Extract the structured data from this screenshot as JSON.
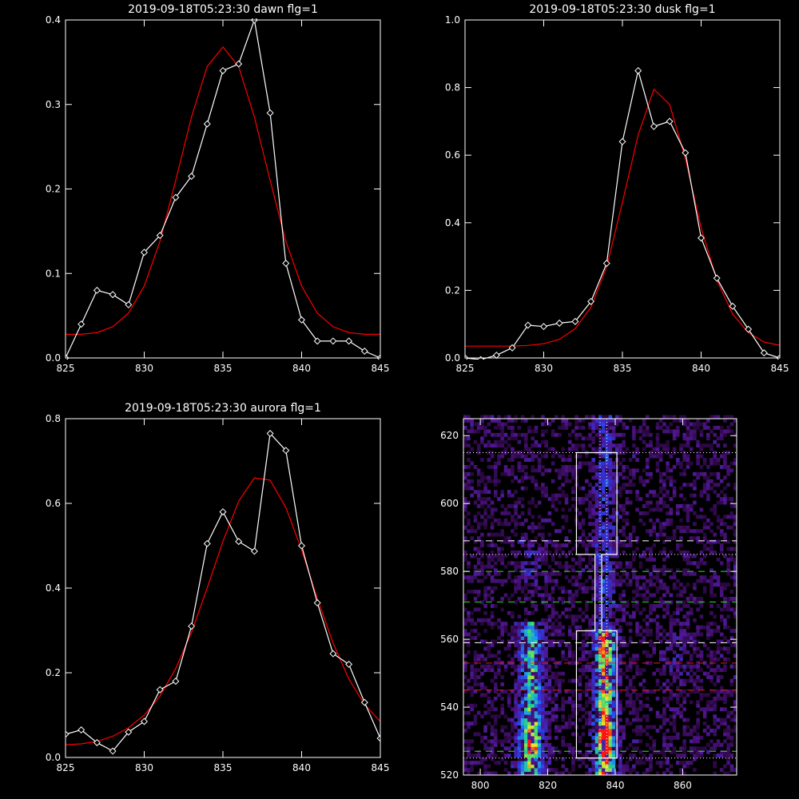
{
  "chart_data": [
    {
      "type": "line",
      "title": "2019-09-18T05:23:30 dawn flg=1",
      "xlim": [
        825,
        845
      ],
      "ylim": [
        0,
        0.4
      ],
      "xticks": [
        825,
        830,
        835,
        840,
        845
      ],
      "xtick_labels": [
        "825",
        "830",
        "835",
        "840",
        "845"
      ],
      "yticks": [
        0,
        0.1,
        0.2,
        0.3,
        0.4
      ],
      "ytick_labels": [
        "0.0",
        "0.1",
        "0.2",
        "0.3",
        "0.4"
      ],
      "series": [
        {
          "color": "#ffffff",
          "marker": "diamond",
          "x": [
            825,
            826,
            827,
            828,
            829,
            830,
            831,
            832,
            833,
            834,
            835,
            836,
            837,
            838,
            839,
            840,
            841,
            842,
            843,
            844,
            845
          ],
          "y": [
            0.0,
            0.04,
            0.08,
            0.075,
            0.063,
            0.125,
            0.145,
            0.19,
            0.215,
            0.277,
            0.34,
            0.348,
            0.4,
            0.29,
            0.112,
            0.045,
            0.02,
            0.02,
            0.02,
            0.008,
            0.0
          ]
        },
        {
          "color": "#ff0000",
          "marker": "none",
          "x": [
            825,
            826,
            827,
            828,
            829,
            830,
            831,
            832,
            833,
            834,
            835,
            836,
            837,
            838,
            839,
            840,
            841,
            842,
            843,
            844,
            845
          ],
          "y": [
            0.028,
            0.028,
            0.03,
            0.037,
            0.053,
            0.085,
            0.138,
            0.21,
            0.285,
            0.345,
            0.368,
            0.345,
            0.285,
            0.21,
            0.138,
            0.085,
            0.053,
            0.037,
            0.03,
            0.028,
            0.028
          ]
        }
      ]
    },
    {
      "type": "line",
      "title": "2019-09-18T05:23:30 dusk flg=1",
      "xlim": [
        825,
        845
      ],
      "ylim": [
        0,
        1.0
      ],
      "xticks": [
        825,
        830,
        835,
        840,
        845
      ],
      "xtick_labels": [
        "825",
        "830",
        "835",
        "840",
        "845"
      ],
      "yticks": [
        0,
        0.2,
        0.4,
        0.6,
        0.8,
        1.0
      ],
      "ytick_labels": [
        "0.0",
        "0.2",
        "0.4",
        "0.6",
        "0.8",
        "1.0"
      ],
      "series": [
        {
          "color": "#ffffff",
          "marker": "diamond",
          "x": [
            825,
            826,
            827,
            828,
            829,
            830,
            831,
            832,
            833,
            834,
            835,
            836,
            837,
            838,
            839,
            840,
            841,
            842,
            843,
            844,
            845
          ],
          "y": [
            0.0,
            -0.005,
            0.008,
            0.03,
            0.097,
            0.093,
            0.103,
            0.108,
            0.167,
            0.28,
            0.64,
            0.85,
            0.685,
            0.7,
            0.607,
            0.355,
            0.236,
            0.153,
            0.085,
            0.015,
            0.0
          ]
        },
        {
          "color": "#ff0000",
          "marker": "none",
          "x": [
            825,
            826,
            827,
            828,
            829,
            830,
            831,
            832,
            833,
            834,
            835,
            836,
            837,
            838,
            839,
            840,
            841,
            842,
            843,
            844,
            845
          ],
          "y": [
            0.035,
            0.035,
            0.035,
            0.035,
            0.037,
            0.042,
            0.055,
            0.087,
            0.15,
            0.27,
            0.46,
            0.66,
            0.795,
            0.75,
            0.59,
            0.385,
            0.23,
            0.13,
            0.075,
            0.047,
            0.037
          ]
        }
      ]
    },
    {
      "type": "line",
      "title": "2019-09-18T05:23:30 aurora flg=1",
      "xlim": [
        825,
        845
      ],
      "ylim": [
        0,
        0.8
      ],
      "xticks": [
        825,
        830,
        835,
        840,
        845
      ],
      "xtick_labels": [
        "825",
        "830",
        "835",
        "840",
        "845"
      ],
      "yticks": [
        0,
        0.2,
        0.4,
        0.6,
        0.8
      ],
      "ytick_labels": [
        "0.0",
        "0.2",
        "0.4",
        "0.6",
        "0.8"
      ],
      "series": [
        {
          "color": "#ffffff",
          "marker": "diamond",
          "x": [
            825,
            826,
            827,
            828,
            829,
            830,
            831,
            832,
            833,
            834,
            835,
            836,
            837,
            838,
            839,
            840,
            841,
            842,
            843,
            844,
            845
          ],
          "y": [
            0.055,
            0.065,
            0.035,
            0.015,
            0.06,
            0.085,
            0.16,
            0.18,
            0.31,
            0.505,
            0.58,
            0.51,
            0.487,
            0.765,
            0.725,
            0.5,
            0.365,
            0.245,
            0.22,
            0.13,
            0.045
          ]
        },
        {
          "color": "#ff0000",
          "marker": "none",
          "x": [
            825,
            826,
            827,
            828,
            829,
            830,
            831,
            832,
            833,
            834,
            835,
            836,
            837,
            838,
            839,
            840,
            841,
            842,
            843,
            844,
            845
          ],
          "y": [
            0.03,
            0.032,
            0.038,
            0.05,
            0.07,
            0.1,
            0.145,
            0.21,
            0.295,
            0.4,
            0.51,
            0.605,
            0.66,
            0.655,
            0.59,
            0.49,
            0.375,
            0.27,
            0.185,
            0.125,
            0.085
          ]
        }
      ]
    },
    {
      "type": "heatmap",
      "title": "",
      "xlim": [
        795,
        876
      ],
      "ylim": [
        520,
        625
      ],
      "xticks": [
        800,
        820,
        840,
        860
      ],
      "xtick_labels": [
        "800",
        "820",
        "840",
        "860"
      ],
      "yticks": [
        520,
        540,
        560,
        580,
        600,
        620
      ],
      "ytick_labels": [
        "520",
        "540",
        "560",
        "580",
        "600",
        "620"
      ],
      "colors": {
        "background": "#000000",
        "low": "#2a0a40",
        "mid": "#3a3cd8",
        "high": "#30e860",
        "peak": "#ff2020"
      },
      "overlays": {
        "white_dotted_h": [
          525,
          585,
          615
        ],
        "white_dotted_v": [
          835.5,
          837.5
        ],
        "white_dashed_h": [
          559,
          589
        ],
        "green_dashed_h": [
          527,
          571,
          580
        ],
        "red_dashed_h": [
          545,
          553
        ],
        "white_box": {
          "x": [
            828.5,
            840.5
          ],
          "segments": [
            [
              525,
              562.5
            ],
            [
              585,
              615
            ]
          ],
          "neck_x": [
            834,
            836
          ],
          "neck_y": [
            562.5,
            585
          ]
        }
      }
    }
  ]
}
